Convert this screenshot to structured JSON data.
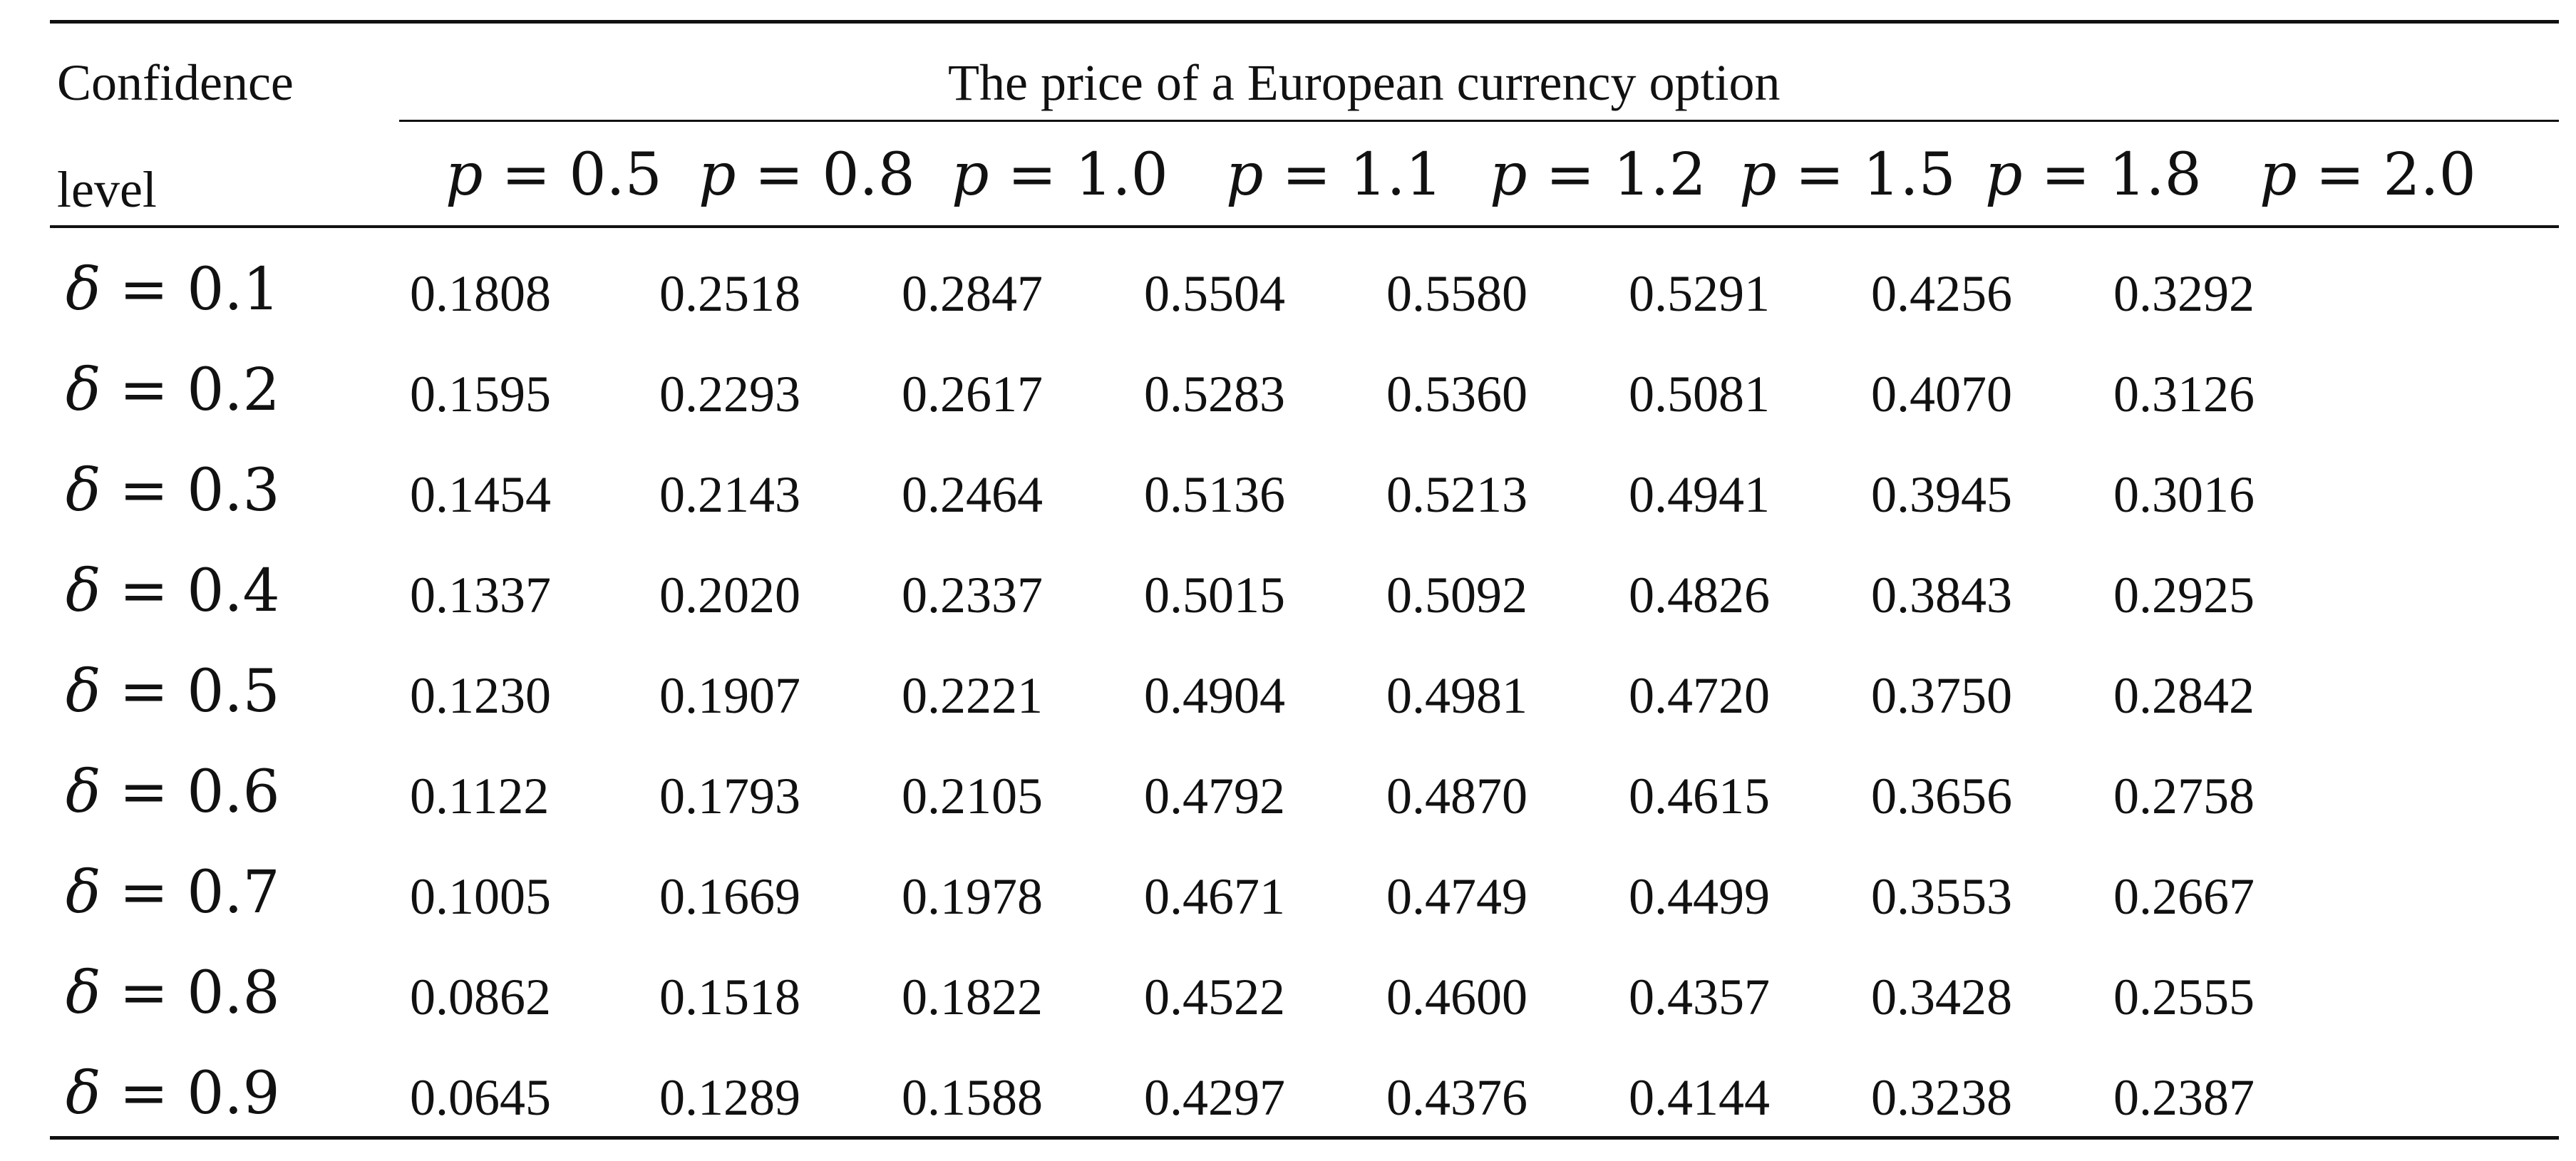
{
  "table": {
    "corner_header_line1": "Confidence",
    "corner_header_line2": "level",
    "group_header": "The price of a European currency option",
    "p_symbol": "p",
    "p_values": [
      "0.5",
      "0.8",
      "1.0",
      "1.1",
      "1.2",
      "1.5",
      "1.8",
      "2.0"
    ],
    "delta_symbol": "δ",
    "rows": [
      {
        "delta": "0.1",
        "values": [
          "0.1808",
          "0.2518",
          "0.2847",
          "0.5504",
          "0.5580",
          "0.5291",
          "0.4256",
          "0.3292"
        ]
      },
      {
        "delta": "0.2",
        "values": [
          "0.1595",
          "0.2293",
          "0.2617",
          "0.5283",
          "0.5360",
          "0.5081",
          "0.4070",
          "0.3126"
        ]
      },
      {
        "delta": "0.3",
        "values": [
          "0.1454",
          "0.2143",
          "0.2464",
          "0.5136",
          "0.5213",
          "0.4941",
          "0.3945",
          "0.3016"
        ]
      },
      {
        "delta": "0.4",
        "values": [
          "0.1337",
          "0.2020",
          "0.2337",
          "0.5015",
          "0.5092",
          "0.4826",
          "0.3843",
          "0.2925"
        ]
      },
      {
        "delta": "0.5",
        "values": [
          "0.1230",
          "0.1907",
          "0.2221",
          "0.4904",
          "0.4981",
          "0.4720",
          "0.3750",
          "0.2842"
        ]
      },
      {
        "delta": "0.6",
        "values": [
          "0.1122",
          "0.1793",
          "0.2105",
          "0.4792",
          "0.4870",
          "0.4615",
          "0.3656",
          "0.2758"
        ]
      },
      {
        "delta": "0.7",
        "values": [
          "0.1005",
          "0.1669",
          "0.1978",
          "0.4671",
          "0.4749",
          "0.4499",
          "0.3553",
          "0.2667"
        ]
      },
      {
        "delta": "0.8",
        "values": [
          "0.0862",
          "0.1518",
          "0.1822",
          "0.4522",
          "0.4600",
          "0.4357",
          "0.3428",
          "0.2555"
        ]
      },
      {
        "delta": "0.9",
        "values": [
          "0.0645",
          "0.1289",
          "0.1588",
          "0.4297",
          "0.4376",
          "0.4144",
          "0.3238",
          "0.2387"
        ]
      }
    ]
  }
}
